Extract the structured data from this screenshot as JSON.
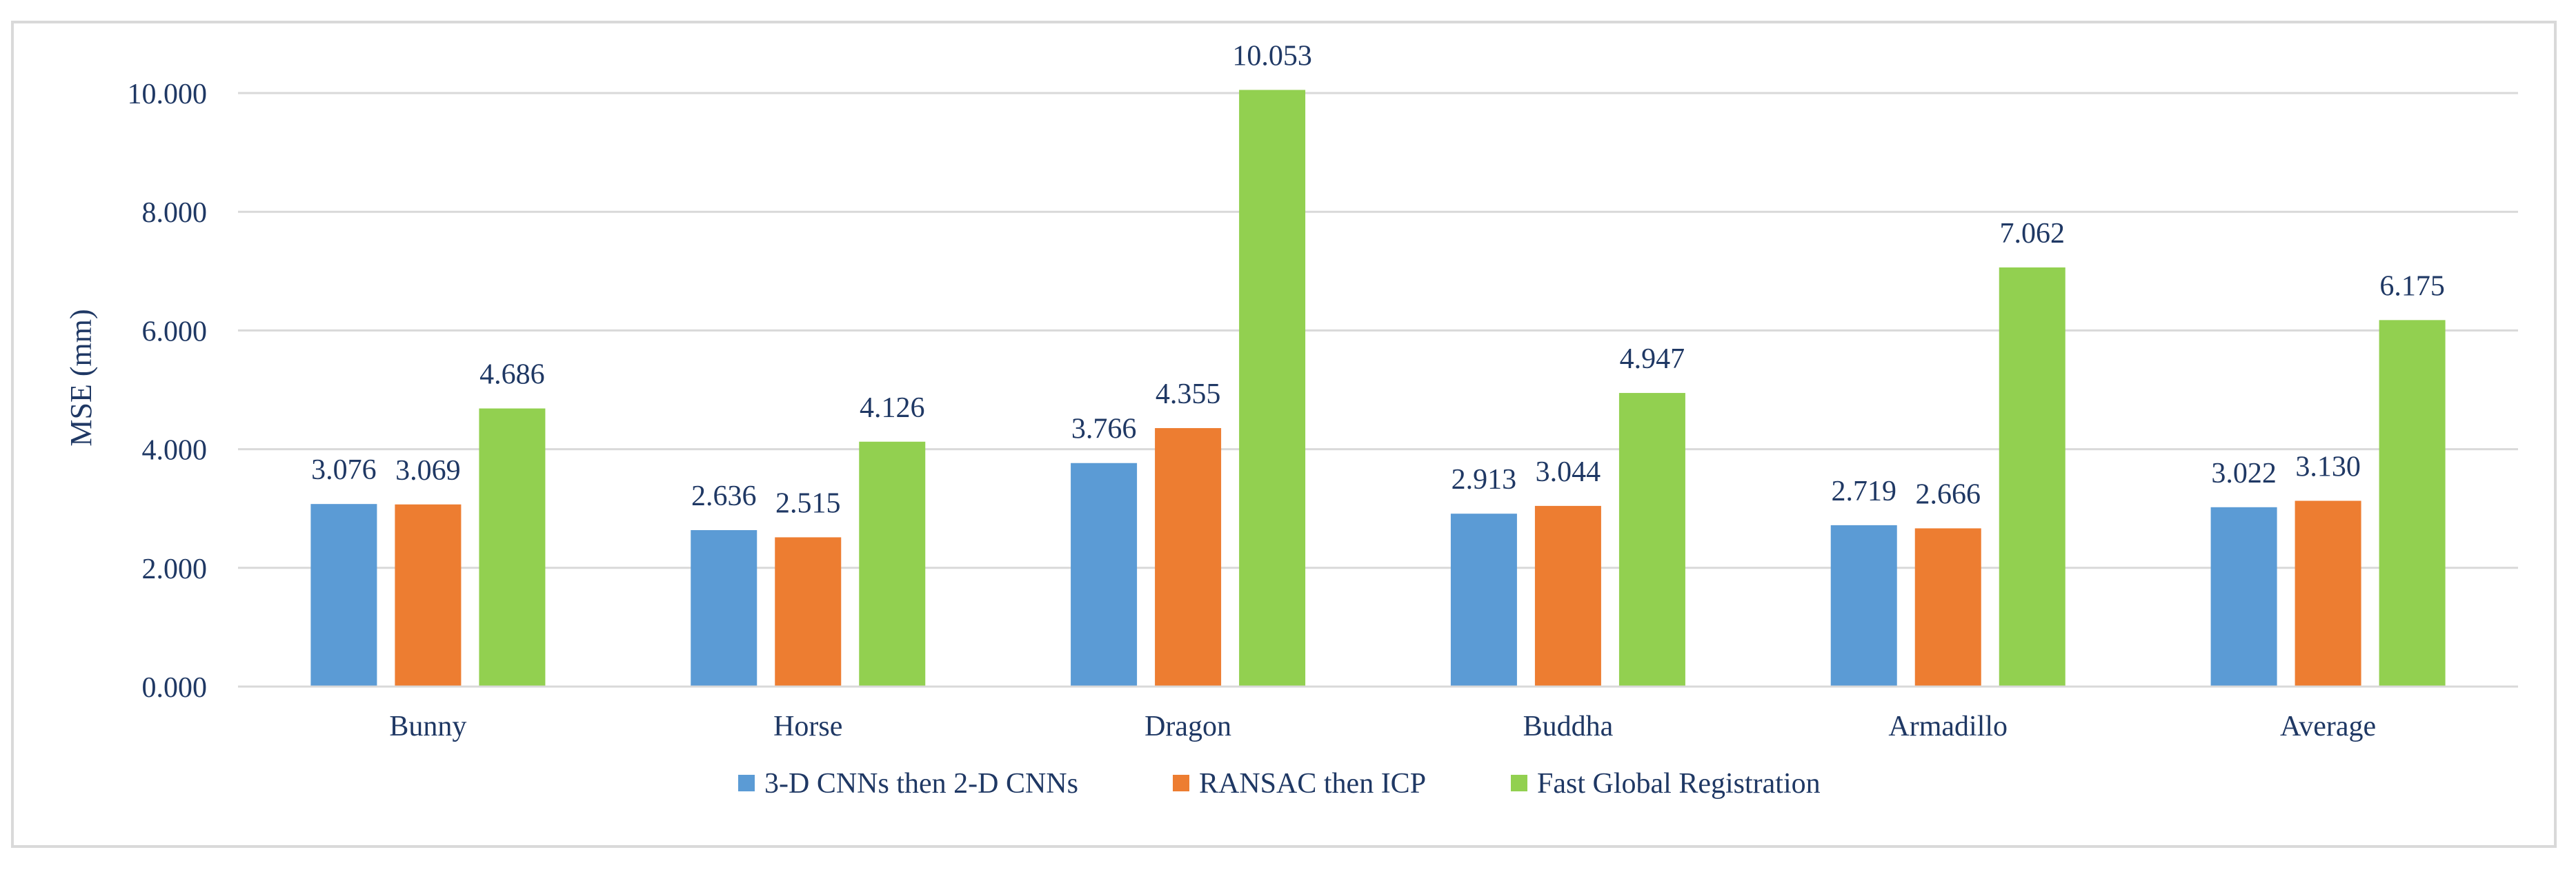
{
  "chart_data": {
    "type": "bar",
    "title": "",
    "xlabel": "",
    "ylabel": "MSE (mm)",
    "ylim": [
      0,
      10
    ],
    "yticks": [
      "0.000",
      "2.000",
      "4.000",
      "6.000",
      "8.000",
      "10.000"
    ],
    "ytick_values": [
      0,
      2,
      4,
      6,
      8,
      10
    ],
    "grid": true,
    "legend_position": "bottom",
    "categories": [
      "Bunny",
      "Horse",
      "Dragon",
      "Buddha",
      "Armadillo",
      "Average"
    ],
    "series": [
      {
        "name": "3-D CNNs then 2-D CNNs",
        "color": "#5b9bd5",
        "values": [
          3.076,
          2.636,
          3.766,
          2.913,
          2.719,
          3.022
        ],
        "labels": [
          "3.076",
          "2.636",
          "3.766",
          "2.913",
          "2.719",
          "3.022"
        ]
      },
      {
        "name": "RANSAC then ICP",
        "color": "#ed7d31",
        "values": [
          3.069,
          2.515,
          4.355,
          3.044,
          2.666,
          3.13
        ],
        "labels": [
          "3.069",
          "2.515",
          "4.355",
          "3.044",
          "2.666",
          "3.130"
        ]
      },
      {
        "name": "Fast Global Registration",
        "color": "#92d050",
        "values": [
          4.686,
          4.126,
          10.053,
          4.947,
          7.062,
          6.175
        ],
        "labels": [
          "4.686",
          "4.126",
          "10.053",
          "4.947",
          "7.062",
          "6.175"
        ]
      }
    ],
    "text_color": "#1f3864",
    "grid_color": "#d9d9d9"
  }
}
